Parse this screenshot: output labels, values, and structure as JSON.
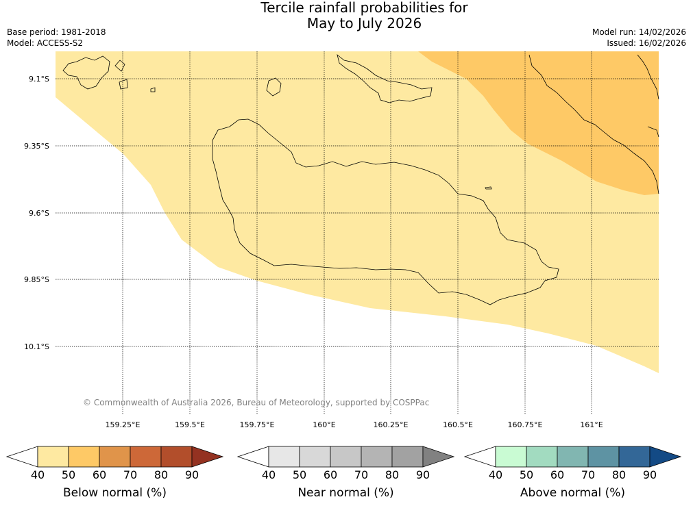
{
  "title_line1": "Tercile rainfall probabilities for",
  "title_line2": "May to July 2026",
  "base_period": "Base period: 1981-2018",
  "model": "Model: ACCESS-S2",
  "model_run": "Model run: 14/02/2026",
  "issued": "Issued: 16/02/2026",
  "copyright": "© Commonwealth of Australia 2026, Bureau of Meteorology, supported by COSPPac",
  "map": {
    "lat_ticks": [
      "9.1°S",
      "9.35°S",
      "9.6°S",
      "9.85°S",
      "10.1°S"
    ],
    "lon_ticks": [
      "159.25°E",
      "159.5°E",
      "159.75°E",
      "160°E",
      "160.25°E",
      "160.5°E",
      "160.75°E",
      "161°E"
    ],
    "lat_range": [
      -10.3,
      -8.98
    ],
    "lon_range": [
      159.0,
      161.25
    ],
    "regions": [
      {
        "category": "Below normal",
        "probability_band": "40-50",
        "color": "#fee9a1"
      },
      {
        "category": "Below normal",
        "probability_band": "50-60",
        "color": "#fec966"
      }
    ]
  },
  "colorbars": [
    {
      "label": "Below normal (%)",
      "ticks": [
        "40",
        "50",
        "60",
        "70",
        "80",
        "90"
      ],
      "colors": [
        "#ffffff",
        "#fee9a1",
        "#fec966",
        "#e0944a",
        "#cd6838",
        "#b24e2b",
        "#943221"
      ]
    },
    {
      "label": "Near normal (%)",
      "ticks": [
        "40",
        "50",
        "60",
        "70",
        "80",
        "90"
      ],
      "colors": [
        "#ffffff",
        "#e7e7e7",
        "#d8d8d8",
        "#c7c7c7",
        "#b4b4b4",
        "#a2a2a2",
        "#818181"
      ]
    },
    {
      "label": "Above normal (%)",
      "ticks": [
        "40",
        "50",
        "60",
        "70",
        "80",
        "90"
      ],
      "colors": [
        "#ffffff",
        "#c9fbd3",
        "#a2dbc0",
        "#81b6b1",
        "#5e93a3",
        "#336797",
        "#134a85"
      ]
    }
  ]
}
